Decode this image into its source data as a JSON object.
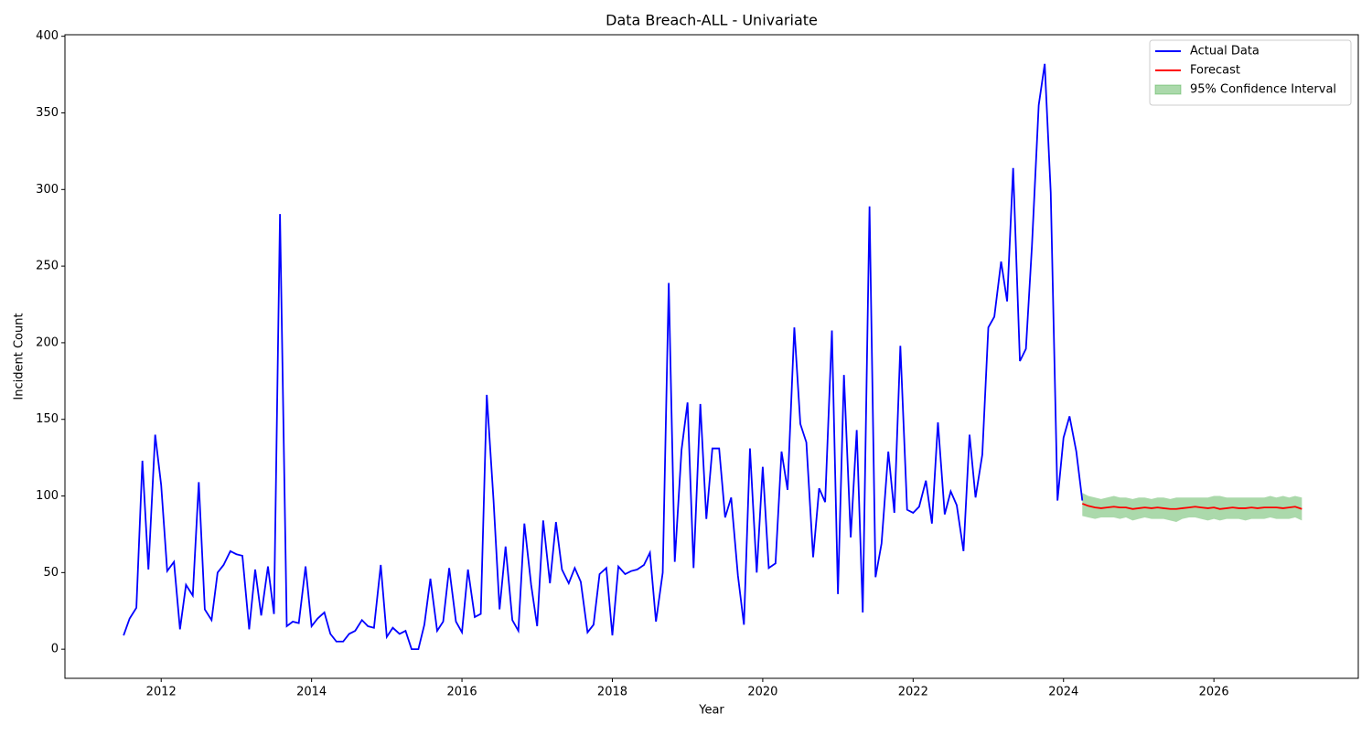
{
  "chart_data": {
    "type": "line",
    "title": "Data Breach-ALL - Univariate",
    "x_label": "Year",
    "y_label": "Incident Count",
    "xlim": [
      2010.72,
      2027.92
    ],
    "ylim": [
      -19,
      401
    ],
    "xticks": [
      2012,
      2014,
      2016,
      2018,
      2020,
      2022,
      2024,
      2026
    ],
    "yticks": [
      0,
      50,
      100,
      150,
      200,
      250,
      300,
      350,
      400
    ],
    "grid": false,
    "legend": "upper right",
    "series": [
      {
        "name": "Actual Data",
        "color": "#0000ff",
        "x": [
          2011.5,
          2011.58,
          2011.67,
          2011.75,
          2011.83,
          2011.92,
          2012,
          2012.08,
          2012.17,
          2012.25,
          2012.33,
          2012.42,
          2012.5,
          2012.58,
          2012.67,
          2012.75,
          2012.83,
          2012.92,
          2013,
          2013.08,
          2013.17,
          2013.25,
          2013.33,
          2013.42,
          2013.5,
          2013.58,
          2013.67,
          2013.75,
          2013.83,
          2013.92,
          2014,
          2014.08,
          2014.17,
          2014.25,
          2014.33,
          2014.42,
          2014.5,
          2014.58,
          2014.67,
          2014.75,
          2014.83,
          2014.92,
          2015,
          2015.08,
          2015.17,
          2015.25,
          2015.33,
          2015.42,
          2015.5,
          2015.58,
          2015.67,
          2015.75,
          2015.83,
          2015.92,
          2016,
          2016.08,
          2016.17,
          2016.25,
          2016.33,
          2016.42,
          2016.5,
          2016.58,
          2016.67,
          2016.75,
          2016.83,
          2016.92,
          2017,
          2017.08,
          2017.17,
          2017.25,
          2017.33,
          2017.42,
          2017.5,
          2017.58,
          2017.67,
          2017.75,
          2017.83,
          2017.92,
          2018,
          2018.08,
          2018.17,
          2018.25,
          2018.33,
          2018.42,
          2018.5,
          2018.58,
          2018.67,
          2018.75,
          2018.83,
          2018.92,
          2019,
          2019.08,
          2019.17,
          2019.25,
          2019.33,
          2019.42,
          2019.5,
          2019.58,
          2019.67,
          2019.75,
          2019.83,
          2019.92,
          2020,
          2020.08,
          2020.17,
          2020.25,
          2020.33,
          2020.42,
          2020.5,
          2020.58,
          2020.67,
          2020.75,
          2020.83,
          2020.92,
          2021,
          2021.08,
          2021.17,
          2021.25,
          2021.33,
          2021.42,
          2021.5,
          2021.58,
          2021.67,
          2021.75,
          2021.83,
          2021.92,
          2022,
          2022.08,
          2022.17,
          2022.25,
          2022.33,
          2022.42,
          2022.5,
          2022.58,
          2022.67,
          2022.75,
          2022.83,
          2022.92,
          2023,
          2023.08,
          2023.17,
          2023.25,
          2023.33,
          2023.42,
          2023.5,
          2023.58,
          2023.67,
          2023.75,
          2023.83,
          2023.92,
          2024,
          2024.08,
          2024.17,
          2024.25
        ],
        "values": [
          9,
          20,
          27,
          123,
          52,
          140,
          107,
          51,
          57,
          13,
          42,
          35,
          109,
          26,
          19,
          50,
          55,
          64,
          62,
          61,
          13,
          52,
          22,
          54,
          23,
          284,
          15,
          18,
          17,
          54,
          15,
          20,
          24,
          10,
          5,
          5,
          10,
          12,
          19,
          15,
          14,
          55,
          8,
          14,
          10,
          12,
          0,
          0,
          16,
          46,
          12,
          18,
          53,
          18,
          11,
          52,
          21,
          23,
          166,
          97,
          26,
          67,
          19,
          12,
          82,
          42,
          15,
          84,
          43,
          83,
          52,
          43,
          53,
          44,
          11,
          16,
          49,
          53,
          9,
          54,
          49,
          51,
          52,
          55,
          63,
          18,
          50,
          239,
          57,
          130,
          161,
          53,
          160,
          85,
          131,
          131,
          86,
          99,
          48,
          16,
          131,
          50,
          119,
          53,
          56,
          129,
          104,
          210,
          147,
          135,
          60,
          105,
          96,
          208,
          36,
          179,
          73,
          143,
          24,
          289,
          47,
          69,
          129,
          89,
          198,
          91,
          89,
          93,
          110,
          82,
          148,
          88,
          103,
          94,
          64,
          140,
          99,
          127,
          210,
          217,
          253,
          227,
          314,
          188,
          196,
          263,
          355,
          382,
          298,
          97,
          138,
          152,
          129,
          97
        ]
      },
      {
        "name": "Forecast",
        "color": "#ff0000",
        "x": [
          2024.25,
          2024.33,
          2024.42,
          2024.5,
          2024.58,
          2024.67,
          2024.75,
          2024.83,
          2024.92,
          2025,
          2025.08,
          2025.17,
          2025.25,
          2025.33,
          2025.42,
          2025.5,
          2025.58,
          2025.67,
          2025.75,
          2025.83,
          2025.92,
          2026,
          2026.08,
          2026.17,
          2026.25,
          2026.33,
          2026.42,
          2026.5,
          2026.58,
          2026.67,
          2026.75,
          2026.83,
          2026.92,
          2027,
          2027.08,
          2027.17
        ],
        "values": [
          95,
          93.5,
          92.5,
          92,
          92.5,
          93,
          92.5,
          92.5,
          91.5,
          92,
          92.5,
          92,
          92.5,
          92,
          91.5,
          91.5,
          92,
          92.5,
          93,
          92.5,
          92,
          92.5,
          91.5,
          92,
          92.5,
          92,
          92,
          92.5,
          92,
          92.5,
          92.5,
          92.5,
          92,
          92.5,
          93,
          91.5
        ]
      },
      {
        "name": "95% Confidence Interval",
        "color": "#2ca02c",
        "type": "band",
        "x": [
          2024.25,
          2024.33,
          2024.42,
          2024.5,
          2024.58,
          2024.67,
          2024.75,
          2024.83,
          2024.92,
          2025,
          2025.08,
          2025.17,
          2025.25,
          2025.33,
          2025.42,
          2025.5,
          2025.58,
          2025.67,
          2025.75,
          2025.83,
          2025.92,
          2026,
          2026.08,
          2026.17,
          2026.25,
          2026.33,
          2026.42,
          2026.5,
          2026.58,
          2026.67,
          2026.75,
          2026.83,
          2026.92,
          2027,
          2027.08,
          2027.17
        ],
        "lower": [
          87,
          86,
          85,
          86,
          86,
          86,
          85,
          86,
          84,
          85,
          86,
          85,
          85,
          85,
          84,
          83,
          85,
          86,
          86,
          85,
          84,
          85,
          84,
          85,
          85,
          85,
          84,
          85,
          85,
          85,
          86,
          85,
          85,
          85,
          86,
          84
        ],
        "upper": [
          102,
          100,
          99,
          98,
          99,
          100,
          99,
          99,
          98,
          99,
          99,
          98,
          99,
          99,
          98,
          99,
          99,
          99,
          99,
          99,
          99,
          100,
          100,
          99,
          99,
          99,
          99,
          99,
          99,
          99,
          100,
          99,
          100,
          99,
          100,
          99
        ]
      }
    ]
  }
}
